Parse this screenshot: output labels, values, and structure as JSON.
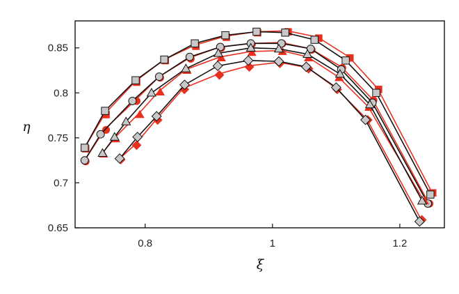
{
  "chart_data": {
    "type": "line",
    "title": "",
    "xlabel": "ξ",
    "ylabel": "η",
    "xlim": [
      0.69,
      1.27
    ],
    "ylim": [
      0.65,
      0.88
    ],
    "x_ticks": [
      0.8,
      1,
      1.2
    ],
    "x_tick_labels": [
      "0.8",
      "1",
      "1.2"
    ],
    "y_ticks": [
      0.65,
      0.7,
      0.75,
      0.8,
      0.85
    ],
    "y_tick_labels": [
      "0.65",
      "0.7",
      "0.75",
      "0.8",
      "0.85"
    ],
    "grid": false,
    "legend": "none",
    "colors": {
      "simulation": "#e8301f",
      "measured": "#111111",
      "marker_fill": "#c8c8c8"
    },
    "series": [
      {
        "marker": "square",
        "simulation": [
          [
            0.705,
            0.739
          ],
          [
            0.737,
            0.777
          ],
          [
            0.785,
            0.813
          ],
          [
            0.83,
            0.837
          ],
          [
            0.878,
            0.853
          ],
          [
            0.926,
            0.863
          ],
          [
            0.975,
            0.868
          ],
          [
            1.023,
            0.869
          ],
          [
            1.071,
            0.862
          ],
          [
            1.12,
            0.84
          ],
          [
            1.165,
            0.805
          ],
          [
            1.25,
            0.69
          ]
        ],
        "measured": [
          [
            0.705,
            0.739
          ],
          [
            0.737,
            0.78
          ],
          [
            0.785,
            0.814
          ],
          [
            0.83,
            0.837
          ],
          [
            0.878,
            0.855
          ],
          [
            0.926,
            0.864
          ],
          [
            0.975,
            0.868
          ],
          [
            1.02,
            0.867
          ],
          [
            1.066,
            0.859
          ],
          [
            1.115,
            0.836
          ],
          [
            1.163,
            0.8
          ],
          [
            1.248,
            0.687
          ]
        ]
      },
      {
        "marker": "circle",
        "simulation": [
          [
            0.705,
            0.725
          ],
          [
            0.737,
            0.76
          ],
          [
            0.785,
            0.792
          ],
          [
            0.822,
            0.818
          ],
          [
            0.87,
            0.839
          ],
          [
            0.918,
            0.851
          ],
          [
            0.966,
            0.855
          ],
          [
            1.014,
            0.856
          ],
          [
            1.06,
            0.849
          ],
          [
            1.108,
            0.829
          ],
          [
            1.157,
            0.793
          ],
          [
            1.245,
            0.678
          ]
        ],
        "measured": [
          [
            0.705,
            0.725
          ],
          [
            0.73,
            0.754
          ],
          [
            0.78,
            0.791
          ],
          [
            0.822,
            0.818
          ],
          [
            0.87,
            0.84
          ],
          [
            0.918,
            0.851
          ],
          [
            0.966,
            0.855
          ],
          [
            1.014,
            0.855
          ],
          [
            1.06,
            0.849
          ],
          [
            1.108,
            0.826
          ],
          [
            1.157,
            0.789
          ],
          [
            1.244,
            0.677
          ]
        ]
      },
      {
        "marker": "triangle",
        "simulation": [
          [
            0.733,
            0.733
          ],
          [
            0.752,
            0.75
          ],
          [
            0.79,
            0.777
          ],
          [
            0.822,
            0.802
          ],
          [
            0.864,
            0.826
          ],
          [
            0.918,
            0.84
          ],
          [
            0.966,
            0.846
          ],
          [
            1.014,
            0.847
          ],
          [
            1.055,
            0.84
          ],
          [
            1.103,
            0.818
          ],
          [
            1.15,
            0.785
          ],
          [
            1.237,
            0.681
          ]
        ],
        "measured": [
          [
            0.733,
            0.733
          ],
          [
            0.752,
            0.751
          ],
          [
            0.77,
            0.768
          ],
          [
            0.81,
            0.8
          ],
          [
            0.864,
            0.827
          ],
          [
            0.915,
            0.844
          ],
          [
            0.966,
            0.85
          ],
          [
            1.01,
            0.849
          ],
          [
            1.055,
            0.843
          ],
          [
            1.106,
            0.821
          ],
          [
            1.153,
            0.787
          ],
          [
            1.235,
            0.68
          ]
        ]
      },
      {
        "marker": "diamond",
        "simulation": [
          [
            0.76,
            0.727
          ],
          [
            0.785,
            0.743
          ],
          [
            0.818,
            0.771
          ],
          [
            0.86,
            0.805
          ],
          [
            0.915,
            0.821
          ],
          [
            0.962,
            0.83
          ],
          [
            1.01,
            0.834
          ],
          [
            1.055,
            0.828
          ],
          [
            1.1,
            0.805
          ],
          [
            1.148,
            0.771
          ],
          [
            1.233,
            0.66
          ]
        ],
        "measured": [
          [
            0.76,
            0.727
          ],
          [
            0.788,
            0.751
          ],
          [
            0.818,
            0.774
          ],
          [
            0.862,
            0.809
          ],
          [
            0.914,
            0.83
          ],
          [
            0.962,
            0.836
          ],
          [
            1.01,
            0.835
          ],
          [
            1.053,
            0.829
          ],
          [
            1.1,
            0.806
          ],
          [
            1.146,
            0.77
          ],
          [
            1.231,
            0.657
          ]
        ]
      }
    ]
  }
}
